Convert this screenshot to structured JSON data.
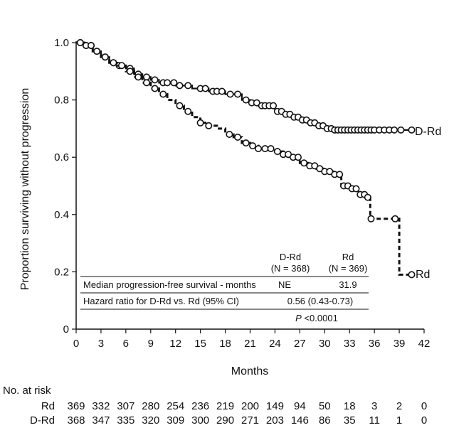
{
  "chart_data": {
    "type": "line",
    "subtype": "kaplan-meier",
    "xlabel": "Months",
    "ylabel": "Proportion surviving without progression",
    "xlim": [
      0,
      42
    ],
    "ylim": [
      0,
      1.0
    ],
    "x_ticks": [
      0,
      3,
      6,
      9,
      12,
      15,
      18,
      21,
      24,
      27,
      30,
      33,
      36,
      39,
      42
    ],
    "x_tick_labels": [
      "0",
      "3",
      "6",
      "9",
      "12",
      "15",
      "18",
      "21",
      "24",
      "27",
      "30",
      "33",
      "36",
      "39",
      "42"
    ],
    "y_ticks": [
      0,
      0.2,
      0.4,
      0.6,
      0.8,
      1.0
    ],
    "y_tick_labels": [
      "0",
      "0.2",
      "0.4",
      "0.6",
      "0.8",
      "1.0"
    ],
    "series": [
      {
        "name": "D-Rd",
        "line_style": "solid",
        "end_label": "D-Rd",
        "steps": [
          [
            0,
            1.0
          ],
          [
            1,
            0.99
          ],
          [
            2,
            0.97
          ],
          [
            3,
            0.95
          ],
          [
            4,
            0.93
          ],
          [
            5,
            0.92
          ],
          [
            6,
            0.91
          ],
          [
            7,
            0.89
          ],
          [
            8,
            0.88
          ],
          [
            9,
            0.87
          ],
          [
            10,
            0.86
          ],
          [
            12,
            0.85
          ],
          [
            14,
            0.84
          ],
          [
            16,
            0.83
          ],
          [
            18,
            0.82
          ],
          [
            20,
            0.8
          ],
          [
            21,
            0.79
          ],
          [
            22,
            0.78
          ],
          [
            24,
            0.76
          ],
          [
            25,
            0.75
          ],
          [
            26,
            0.74
          ],
          [
            27,
            0.73
          ],
          [
            28,
            0.72
          ],
          [
            29,
            0.71
          ],
          [
            30,
            0.7
          ],
          [
            31,
            0.695
          ],
          [
            40.5,
            0.695
          ]
        ],
        "censored": [
          0.5,
          1.2,
          1.8,
          2.5,
          3.5,
          4.5,
          5.2,
          6.5,
          7.5,
          8.5,
          9.5,
          10.5,
          11,
          11.8,
          12.5,
          13.5,
          15,
          15.6,
          16.5,
          17,
          17.6,
          18.6,
          19.5,
          20.5,
          21.2,
          21.8,
          22.4,
          22.8,
          23.3,
          23.8,
          24.3,
          24.8,
          25.3,
          25.8,
          26.3,
          26.8,
          27.3,
          27.8,
          28.3,
          28.8,
          29.3,
          29.8,
          30.3,
          30.8,
          31.2,
          31.6,
          32,
          32.4,
          32.8,
          33.2,
          33.6,
          34,
          34.4,
          34.8,
          35.2,
          35.6,
          36,
          36.6,
          37.2,
          37.8,
          38.4,
          39.2,
          40.5
        ]
      },
      {
        "name": "Rd",
        "line_style": "dashed",
        "end_label": "Rd",
        "steps": [
          [
            0,
            1.0
          ],
          [
            1,
            0.99
          ],
          [
            2,
            0.97
          ],
          [
            3,
            0.95
          ],
          [
            4,
            0.93
          ],
          [
            5,
            0.92
          ],
          [
            6,
            0.9
          ],
          [
            7,
            0.88
          ],
          [
            8,
            0.86
          ],
          [
            9,
            0.84
          ],
          [
            10,
            0.82
          ],
          [
            11,
            0.8
          ],
          [
            12,
            0.78
          ],
          [
            13,
            0.76
          ],
          [
            14,
            0.74
          ],
          [
            15,
            0.72
          ],
          [
            16,
            0.71
          ],
          [
            17,
            0.7
          ],
          [
            18,
            0.68
          ],
          [
            19,
            0.67
          ],
          [
            20,
            0.65
          ],
          [
            21,
            0.64
          ],
          [
            22,
            0.63
          ],
          [
            24,
            0.62
          ],
          [
            25,
            0.61
          ],
          [
            26,
            0.6
          ],
          [
            27,
            0.58
          ],
          [
            28,
            0.57
          ],
          [
            29,
            0.56
          ],
          [
            30,
            0.55
          ],
          [
            31,
            0.54
          ],
          [
            32,
            0.5
          ],
          [
            33,
            0.49
          ],
          [
            34,
            0.47
          ],
          [
            35,
            0.46
          ],
          [
            35.5,
            0.385
          ],
          [
            38.5,
            0.385
          ],
          [
            39,
            0.19
          ],
          [
            40.5,
            0.19
          ]
        ],
        "censored": [
          0.5,
          1.2,
          1.8,
          2.5,
          3.5,
          4.5,
          5.5,
          6.5,
          7.5,
          8.5,
          9.5,
          10.5,
          12.5,
          13.5,
          15,
          16,
          18.5,
          19.5,
          20.5,
          21.3,
          22,
          22.8,
          23.5,
          24.3,
          25,
          25.6,
          26.2,
          26.8,
          27.5,
          28.2,
          28.8,
          29.4,
          30,
          30.6,
          31.2,
          31.8,
          32.3,
          32.8,
          33.3,
          33.8,
          34.3,
          34.8,
          35.2,
          35.6,
          38.5,
          40.5
        ]
      }
    ],
    "risk_table": {
      "title": "No. at risk",
      "rows": [
        {
          "label": "Rd",
          "values": [
            "369",
            "332",
            "307",
            "280",
            "254",
            "236",
            "219",
            "200",
            "149",
            "94",
            "50",
            "18",
            "3",
            "2",
            "0"
          ]
        },
        {
          "label": "D-Rd",
          "values": [
            "368",
            "347",
            "335",
            "320",
            "309",
            "300",
            "290",
            "271",
            "203",
            "146",
            "86",
            "35",
            "11",
            "1",
            "0"
          ]
        }
      ]
    },
    "stats_table": {
      "col1_header": "D-Rd",
      "col1_n": "(N = 368)",
      "col2_header": "Rd",
      "col2_n": "(N = 369)",
      "row1_label": "Median progression-free survival - months",
      "row1_col1": "NE",
      "row1_col2": "31.9",
      "row2_label": "Hazard ratio for D-Rd vs. Rd (95% CI)",
      "row2_value": "0.56 (0.43-0.73)",
      "p_label": "P",
      "p_value": " <0.0001"
    },
    "colors": {
      "ink": "#111111",
      "background": "#ffffff"
    }
  }
}
